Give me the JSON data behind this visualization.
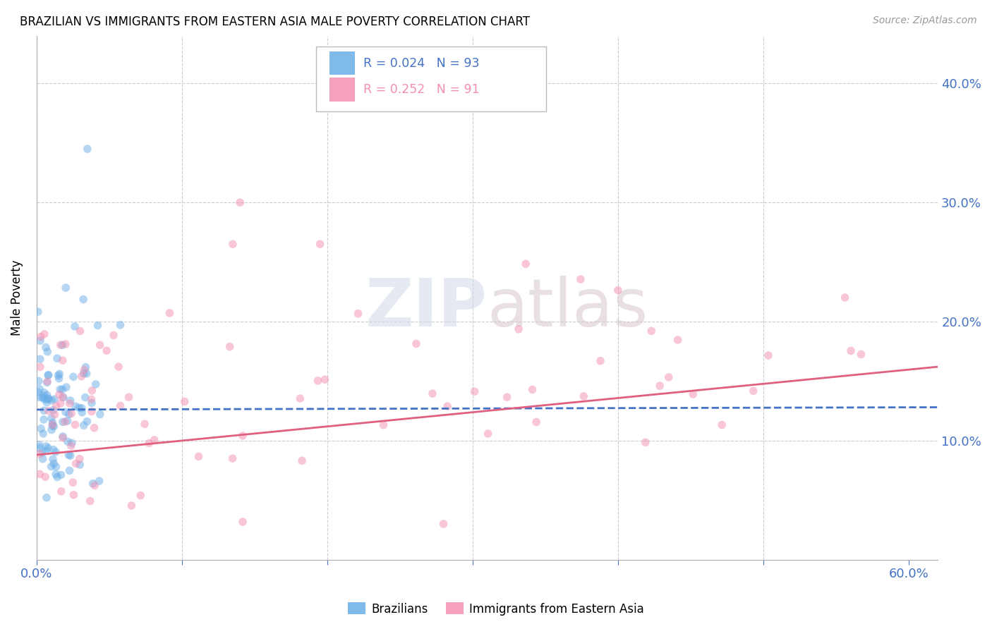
{
  "title": "BRAZILIAN VS IMMIGRANTS FROM EASTERN ASIA MALE POVERTY CORRELATION CHART",
  "source": "Source: ZipAtlas.com",
  "ylabel": "Male Poverty",
  "right_yticks": [
    "40.0%",
    "30.0%",
    "20.0%",
    "10.0%"
  ],
  "right_ytick_vals": [
    0.4,
    0.3,
    0.2,
    0.1
  ],
  "xlim": [
    0.0,
    0.62
  ],
  "ylim": [
    0.0,
    0.44
  ],
  "legend_color1": "#6aaee8",
  "legend_color2": "#f48fb1",
  "scatter1_color": "#6aaee8",
  "scatter2_color": "#f48fb1",
  "line1_color": "#4472c4",
  "line2_color": "#e06080",
  "grid_color": "#cccccc",
  "tick_color": "#4472c4",
  "marker_size": 70,
  "marker_alpha": 0.5,
  "line1_y_start": 0.126,
  "line1_y_end": 0.128,
  "line2_y_start": 0.088,
  "line2_y_end": 0.162,
  "xtick_grid_vals": [
    0.1,
    0.2,
    0.3,
    0.4,
    0.5
  ],
  "xtick_left_label": "0.0%",
  "xtick_right_label": "60.0%"
}
